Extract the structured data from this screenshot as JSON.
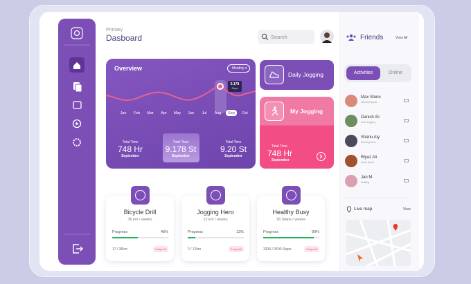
{
  "header": {
    "subtitle": "Primary",
    "title": "Dasboard",
    "search": "Search"
  },
  "overview": {
    "title": "Overview",
    "period": "Monthly",
    "months": [
      "Jan",
      "Feb",
      "Mar",
      "Apr",
      "May",
      "Jun",
      "Jul",
      "Aug",
      "Sep",
      "Oct"
    ],
    "tooltip": {
      "value": "5.178",
      "unit": "Steps"
    },
    "stats": [
      {
        "label": "Total Time",
        "value": "748 Hr",
        "sub": "September"
      },
      {
        "label": "Total Time",
        "value": "9.178 St",
        "sub": "September"
      },
      {
        "label": "Total Time",
        "value": "9.20 St",
        "sub": "September"
      }
    ]
  },
  "daily_jogging": {
    "title": "Daily Jogging"
  },
  "my_jogging": {
    "title": "My Jogging",
    "label": "Total Time",
    "value": "748 Hr",
    "sub": "September"
  },
  "activities": [
    {
      "title": "Bicycle Drill",
      "subtitle": "36 km / weeks",
      "progress_label": "Progress",
      "progress": {
        "value": 46,
        "label": "46%"
      },
      "count": "17 / 36km",
      "badge": "3 days left"
    },
    {
      "title": "Jogging Hero",
      "subtitle": "12 km / weeks",
      "progress_label": "Progress",
      "progress": {
        "value": 13,
        "label": "13%"
      },
      "count": "2 / 12km",
      "badge": "3 days left"
    },
    {
      "title": "Healthy Busy",
      "subtitle": "36 Steps / weeks",
      "progress_label": "Progress",
      "progress": {
        "value": 90,
        "label": "90%"
      },
      "count": "3200 / 3600 Steps",
      "badge": "3 days left"
    }
  ],
  "friends": {
    "title": "Friends",
    "view_all": "View All",
    "tabs": [
      "Activities",
      "Online"
    ],
    "list": [
      {
        "name": "Max Stone",
        "activity": "Weekly Bicycle"
      },
      {
        "name": "Danish Ali",
        "activity": "Slow Jogging"
      },
      {
        "name": "Shanu Aly",
        "activity": "Morning Runs"
      },
      {
        "name": "Riyaz Ali",
        "activity": "Quick Sprint"
      },
      {
        "name": "Jan M.",
        "activity": "Walking"
      }
    ]
  },
  "live_map": {
    "title": "Live map",
    "view": "View"
  }
}
